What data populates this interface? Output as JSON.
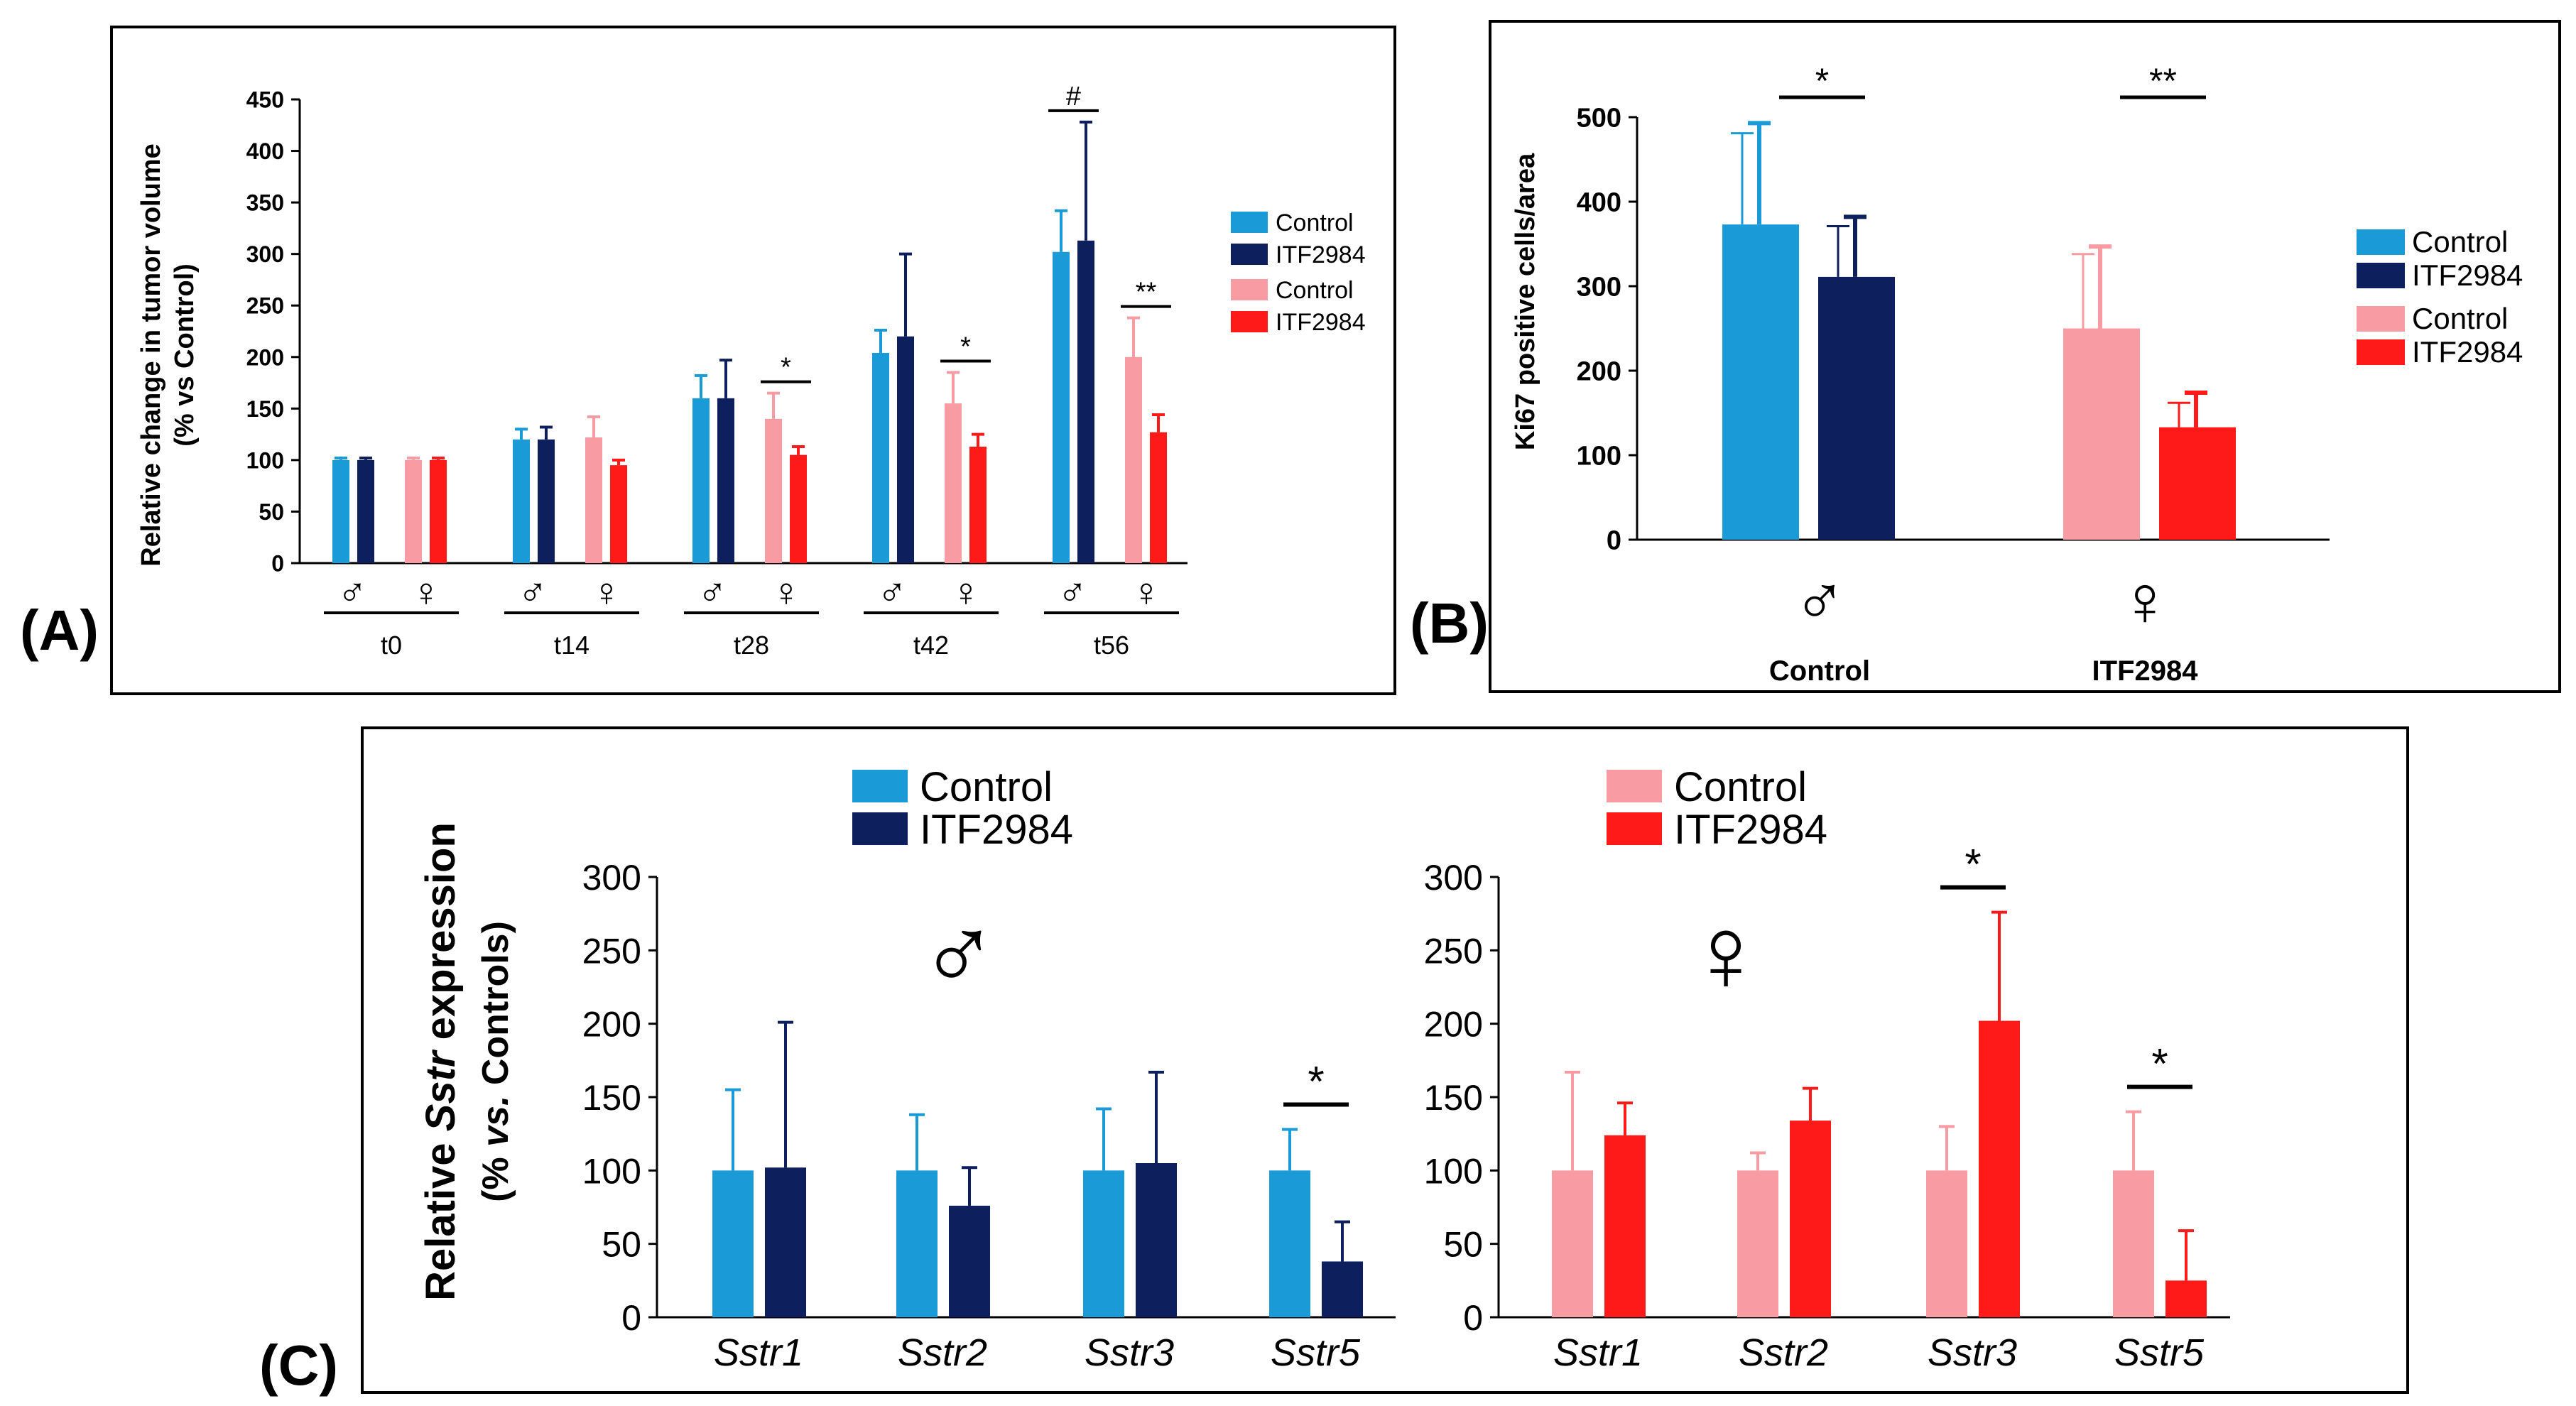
{
  "colors": {
    "male_control": "#1a9ad6",
    "male_itf": "#0d1f5c",
    "female_control": "#f99ba3",
    "female_itf": "#ff1a1a"
  },
  "symbols": {
    "male": "♂",
    "female": "♀"
  },
  "panels": [
    {
      "label": "(A)"
    },
    {
      "label": "(B)"
    },
    {
      "label": "(C)"
    }
  ],
  "chart_data": [
    {
      "id": "A",
      "type": "bar",
      "title": "",
      "ylabel_line1": "Relative change in tumor volume",
      "ylabel_line2": "(% vs Control)",
      "ylim": [
        0,
        450
      ],
      "yticks": [
        0,
        50,
        100,
        150,
        200,
        250,
        300,
        350,
        400,
        450
      ],
      "categories": [
        "t0",
        "t14",
        "t28",
        "t42",
        "t56"
      ],
      "sex_labels": [
        "♂",
        "♀"
      ],
      "legend": [
        "Control",
        "ITF2984",
        "Control",
        "ITF2984"
      ],
      "series": [
        {
          "name": "Control (male)",
          "color": "male_control",
          "values": [
            100,
            120,
            160,
            204,
            302
          ],
          "errors": [
            2,
            10,
            22,
            22,
            40
          ]
        },
        {
          "name": "ITF2984 (male)",
          "color": "male_itf",
          "values": [
            100,
            120,
            160,
            220,
            313
          ],
          "errors": [
            2,
            12,
            37,
            80,
            115
          ]
        },
        {
          "name": "Control (female)",
          "color": "female_control",
          "values": [
            100,
            122,
            140,
            155,
            200
          ],
          "errors": [
            2,
            20,
            25,
            30,
            38
          ]
        },
        {
          "name": "ITF2984 (female)",
          "color": "female_itf",
          "values": [
            100,
            95,
            105,
            113,
            127
          ],
          "errors": [
            2,
            5,
            8,
            12,
            17
          ]
        }
      ],
      "annotations": [
        {
          "text": "*",
          "group": 2,
          "pair": "female"
        },
        {
          "text": "*",
          "group": 3,
          "pair": "female"
        },
        {
          "text": "#",
          "group": 4,
          "pair": "male"
        },
        {
          "text": "**",
          "group": 4,
          "pair": "female"
        }
      ]
    },
    {
      "id": "B",
      "type": "bar",
      "title": "",
      "ylabel": "Ki67 positive cells/area",
      "ylim": [
        0,
        500
      ],
      "yticks": [
        0,
        100,
        200,
        300,
        400,
        500
      ],
      "sex_labels": [
        "♂",
        "♀"
      ],
      "xlabels": [
        "Control",
        "ITF2984"
      ],
      "legend": [
        "Control",
        "ITF2984",
        "Control",
        "ITF2984"
      ],
      "series": [
        {
          "name": "Control (male)",
          "color": "male_control",
          "value": 373,
          "error": 120,
          "error_lower": 108
        },
        {
          "name": "ITF2984 (male)",
          "color": "male_itf",
          "value": 311,
          "error": 71,
          "error_lower": 60
        },
        {
          "name": "Control (female)",
          "color": "female_control",
          "value": 250,
          "error": 97,
          "error_lower": 88
        },
        {
          "name": "ITF2984 (female)",
          "color": "female_itf",
          "value": 133,
          "error": 41,
          "error_lower": 29
        }
      ],
      "annotations": [
        "*",
        "**"
      ]
    },
    {
      "id": "C",
      "type": "bar",
      "title": "",
      "ylabel_prefix": "Relative ",
      "ylabel_italic": "Sstr",
      "ylabel_suffix": " expression",
      "ylabel_line2_a": "(% ",
      "ylabel_line2_b": "vs.",
      "ylabel_line2_c": " Controls)",
      "ylim": [
        0,
        300
      ],
      "yticks": [
        0,
        50,
        100,
        150,
        200,
        250,
        300
      ],
      "categories": [
        "Sstr1",
        "Sstr2",
        "Sstr3",
        "Sstr5"
      ],
      "male": {
        "symbol": "♂",
        "legend": [
          "Control",
          "ITF2984"
        ],
        "series": [
          {
            "name": "Control",
            "color": "male_control",
            "values": [
              100,
              100,
              100,
              100
            ],
            "errors": [
              55,
              38,
              42,
              28
            ]
          },
          {
            "name": "ITF2984",
            "color": "male_itf",
            "values": [
              102,
              76,
              105,
              38
            ],
            "errors": [
              99,
              26,
              62,
              27
            ]
          }
        ],
        "annotations": [
          {
            "text": "*",
            "group": 3
          }
        ]
      },
      "female": {
        "symbol": "♀",
        "legend": [
          "Control",
          "ITF2984"
        ],
        "series": [
          {
            "name": "Control",
            "color": "female_control",
            "values": [
              100,
              100,
              100,
              100
            ],
            "errors": [
              67,
              12,
              30,
              40
            ]
          },
          {
            "name": "ITF2984",
            "color": "female_itf",
            "values": [
              124,
              134,
              202,
              25
            ],
            "errors": [
              22,
              22,
              74,
              34
            ]
          }
        ],
        "annotations": [
          {
            "text": "*",
            "group": 2
          },
          {
            "text": "*",
            "group": 3
          }
        ]
      }
    }
  ]
}
